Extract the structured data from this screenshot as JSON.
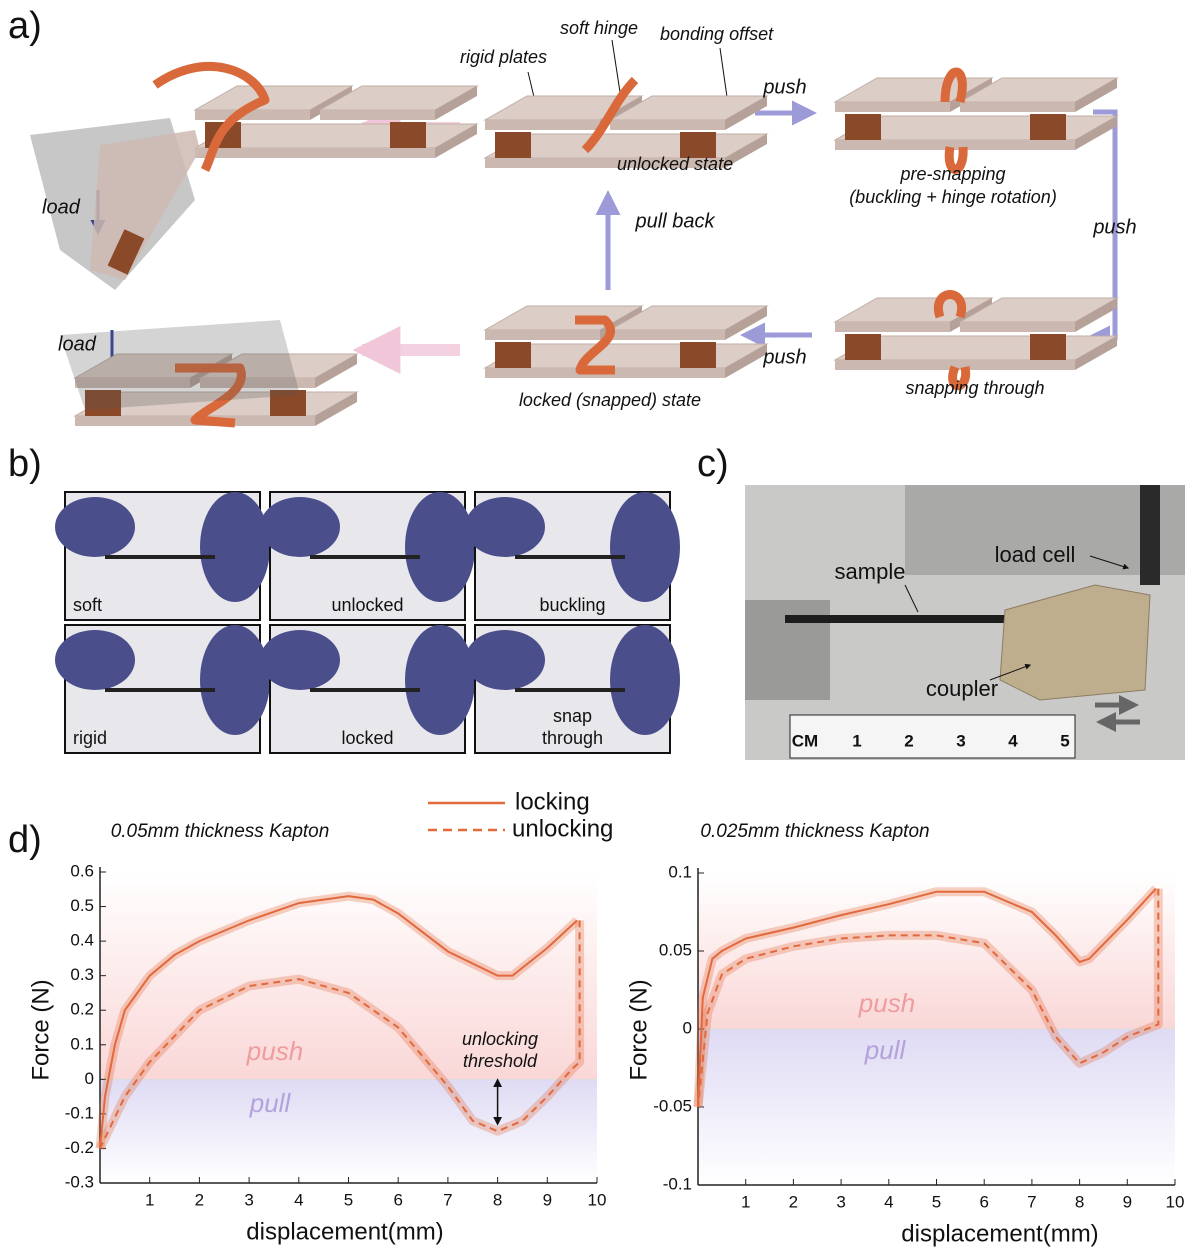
{
  "panel_labels": {
    "a": "a)",
    "b": "b)",
    "c": "c)",
    "d": "d)"
  },
  "panel_a": {
    "rigid_plates": "rigid plates",
    "soft_hinge": "soft hinge",
    "bonding_offset": "bonding offset",
    "unlocked_state": "unlocked state",
    "push_1": "push",
    "pre_snapping": "pre-snapping",
    "pre_snapping_note": "(buckling + hinge rotation)",
    "push_2": "push",
    "snapping_through": "snapping through",
    "push_3": "push",
    "locked_state": "locked (snapped) state",
    "pull_back": "pull back",
    "load_1": "load",
    "load_2": "load"
  },
  "panel_b": {
    "photos": [
      [
        "soft"
      ],
      [
        "unlocked"
      ],
      [
        "buckling"
      ],
      [
        "rigid"
      ],
      [
        "locked"
      ],
      [
        "snap",
        "through"
      ]
    ]
  },
  "panel_c": {
    "sample": "sample",
    "load_cell": "load cell",
    "coupler": "coupler",
    "ruler": [
      "CM",
      "1",
      "2",
      "3",
      "4",
      "5"
    ]
  },
  "chart_data": [
    {
      "type": "line",
      "title": "0.05mm thickness Kapton",
      "xlabel": "displacement(mm)",
      "ylabel": "Force (N)",
      "xlim": [
        0,
        10
      ],
      "ylim": [
        -0.3,
        0.6
      ],
      "xticks": [
        1,
        2,
        3,
        4,
        5,
        6,
        7,
        8,
        9,
        10
      ],
      "yticks": [
        -0.3,
        -0.2,
        -0.1,
        0,
        0.1,
        0.2,
        0.3,
        0.4,
        0.5,
        0.6
      ],
      "annotations": [
        "push",
        "pull",
        "unlocking",
        "threshold"
      ],
      "series": [
        {
          "name": "locking",
          "color": "#e2693c",
          "linestyle": "solid",
          "x": [
            0,
            0.1,
            0.3,
            0.5,
            1,
            1.5,
            2,
            3,
            4,
            5,
            5.5,
            6,
            7,
            8,
            8.3,
            9,
            9.6
          ],
          "values": [
            -0.2,
            -0.05,
            0.1,
            0.2,
            0.3,
            0.36,
            0.4,
            0.46,
            0.51,
            0.53,
            0.52,
            0.48,
            0.37,
            0.3,
            0.3,
            0.38,
            0.46
          ]
        },
        {
          "name": "unlocking",
          "color": "#e2693c",
          "linestyle": "dashed",
          "x": [
            9.65,
            9.65,
            9.5,
            9,
            8.5,
            8,
            7.5,
            7,
            6,
            5,
            4,
            3,
            2,
            1,
            0.5,
            0
          ],
          "values": [
            0.46,
            0.05,
            0.03,
            -0.05,
            -0.12,
            -0.15,
            -0.12,
            -0.02,
            0.15,
            0.25,
            0.29,
            0.27,
            0.2,
            0.05,
            -0.05,
            -0.2
          ]
        }
      ]
    },
    {
      "type": "line",
      "title": "0.025mm thickness Kapton",
      "xlabel": "displacement(mm)",
      "ylabel": "Force (N)",
      "xlim": [
        0,
        10
      ],
      "ylim": [
        -0.1,
        0.1
      ],
      "xticks": [
        1,
        2,
        3,
        4,
        5,
        6,
        7,
        8,
        9,
        10
      ],
      "yticks": [
        -0.1,
        -0.05,
        0,
        0.05,
        0.1
      ],
      "annotations": [
        "push",
        "pull"
      ],
      "series": [
        {
          "color": "#e2693c",
          "linestyle": "solid",
          "x": [
            0,
            0.1,
            0.3,
            0.5,
            1,
            2,
            3,
            4,
            5,
            6,
            7,
            7.5,
            8,
            8.2,
            9,
            9.6
          ],
          "values": [
            -0.05,
            0.02,
            0.045,
            0.05,
            0.058,
            0.065,
            0.073,
            0.08,
            0.088,
            0.088,
            0.075,
            0.06,
            0.043,
            0.045,
            0.07,
            0.09
          ]
        },
        {
          "color": "#e2693c",
          "linestyle": "dashed",
          "x": [
            9.65,
            9.65,
            9,
            8.5,
            8,
            7.5,
            7,
            6,
            5,
            4,
            3,
            2,
            1,
            0.5,
            0.2,
            0
          ],
          "values": [
            0.09,
            0.003,
            -0.005,
            -0.015,
            -0.022,
            -0.005,
            0.025,
            0.055,
            0.06,
            0.06,
            0.058,
            0.053,
            0.045,
            0.035,
            0.01,
            -0.05
          ]
        }
      ]
    }
  ]
}
